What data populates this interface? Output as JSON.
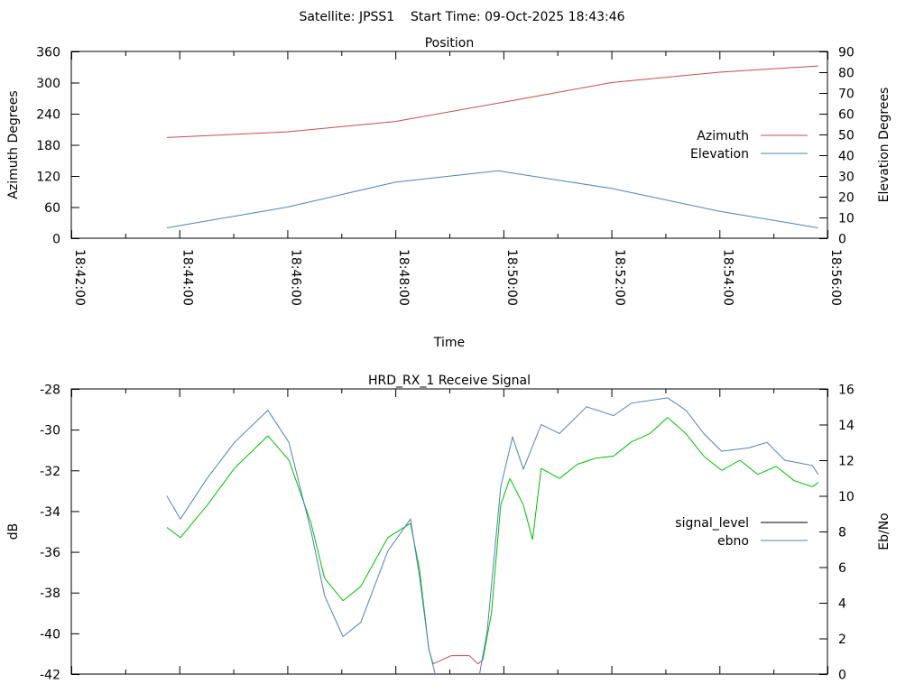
{
  "header": {
    "title": "Satellite: JPSS1    Start Time: 09-Oct-2025 18:43:46"
  },
  "chart_data": [
    {
      "type": "line",
      "title": "Position",
      "xlabel": "Time",
      "ylabel": "Azimuth Degrees",
      "y2label": "Elevation Degrees",
      "xlim_min": [
        0,
        14
      ],
      "x_units": "minutes after 18:42:00",
      "x_tick_labels": [
        "18:42:00",
        "18:44:00",
        "18:46:00",
        "18:48:00",
        "18:50:00",
        "18:52:00",
        "18:54:00",
        "18:56:00"
      ],
      "ylim": [
        0,
        360
      ],
      "y_ticks": [
        "0",
        "60",
        "120",
        "180",
        "240",
        "300",
        "360"
      ],
      "y2lim": [
        0,
        90
      ],
      "y2_ticks": [
        "0",
        "10",
        "20",
        "30",
        "40",
        "50",
        "60",
        "70",
        "80",
        "90"
      ],
      "legend": "right",
      "series": [
        {
          "name": "Azimuth",
          "axis": "y",
          "color": "#c0504d",
          "x": [
            1.77,
            4.0,
            6.0,
            8.0,
            10.0,
            12.0,
            13.83
          ],
          "values": [
            194,
            205,
            225,
            262,
            300,
            320,
            332
          ]
        },
        {
          "name": "Elevation",
          "axis": "y2",
          "color": "#4f81bd",
          "x": [
            1.77,
            4.0,
            6.0,
            7.9,
            10.0,
            12.0,
            13.83
          ],
          "values": [
            5,
            15,
            27,
            32.5,
            24,
            13,
            5
          ]
        }
      ]
    },
    {
      "type": "line",
      "title": "HRD_RX_1 Receive Signal",
      "ylabel": "dB",
      "y2label": "Eb/No",
      "xlim_min": [
        0,
        14
      ],
      "x_units": "minutes after 18:42:00",
      "ylim": [
        -42,
        -28
      ],
      "y_ticks": [
        "-42",
        "-40",
        "-38",
        "-36",
        "-34",
        "-32",
        "-30",
        "-28"
      ],
      "y2lim": [
        0,
        16
      ],
      "y2_ticks": [
        "0",
        "2",
        "4",
        "6",
        "8",
        "10",
        "12",
        "14",
        "16"
      ],
      "legend": "right",
      "legend_entries": [
        {
          "name": "signal_level",
          "color": "#000000"
        },
        {
          "name": "ebno",
          "color": "#4f81bd"
        }
      ],
      "series": [
        {
          "name": "signal_level",
          "axis": "y",
          "color": "#00c000",
          "low_color": "#c0504d",
          "low_threshold": -40.9,
          "x": [
            1.77,
            2.02,
            2.52,
            3.02,
            3.64,
            4.03,
            4.44,
            4.69,
            5.03,
            5.36,
            5.86,
            6.28,
            6.45,
            6.62,
            6.7,
            7.03,
            7.37,
            7.53,
            7.62,
            7.78,
            7.95,
            8.12,
            8.37,
            8.54,
            8.7,
            9.04,
            9.37,
            9.71,
            10.04,
            10.37,
            10.71,
            11.04,
            11.38,
            11.71,
            12.04,
            12.38,
            12.71,
            13.05,
            13.38,
            13.72,
            13.83
          ],
          "values": [
            -34.8,
            -35.3,
            -33.7,
            -31.9,
            -30.3,
            -31.5,
            -34.6,
            -37.3,
            -38.4,
            -37.7,
            -35.3,
            -34.6,
            -36.9,
            -40.8,
            -41.5,
            -41.1,
            -41.1,
            -41.5,
            -41.3,
            -39,
            -33.7,
            -32.4,
            -33.7,
            -35.4,
            -31.9,
            -32.4,
            -31.7,
            -31.4,
            -31.3,
            -30.6,
            -30.2,
            -29.4,
            -30.2,
            -31.3,
            -32,
            -31.5,
            -32.2,
            -31.8,
            -32.5,
            -32.8,
            -32.6
          ]
        },
        {
          "name": "ebno",
          "axis": "y2",
          "color": "#4f81bd",
          "x": [
            1.77,
            2.02,
            2.52,
            3.02,
            3.64,
            4.03,
            4.44,
            4.69,
            5.03,
            5.36,
            5.86,
            6.28,
            6.45,
            6.62,
            6.78,
            7.53,
            7.7,
            7.95,
            8.17,
            8.37,
            8.7,
            9.04,
            9.54,
            10.04,
            10.37,
            11.04,
            11.38,
            11.71,
            12.04,
            12.55,
            12.88,
            13.21,
            13.72,
            13.83
          ],
          "values": [
            10,
            8.7,
            11,
            13,
            14.8,
            13,
            8,
            4.4,
            2.1,
            2.9,
            6.9,
            8.7,
            5.4,
            1.4,
            -0.5,
            -0.5,
            2.4,
            10.5,
            13.3,
            11.5,
            14,
            13.5,
            15,
            14.5,
            15.2,
            15.5,
            14.8,
            13.5,
            12.5,
            12.7,
            13,
            12,
            11.7,
            11.2
          ]
        }
      ]
    }
  ]
}
